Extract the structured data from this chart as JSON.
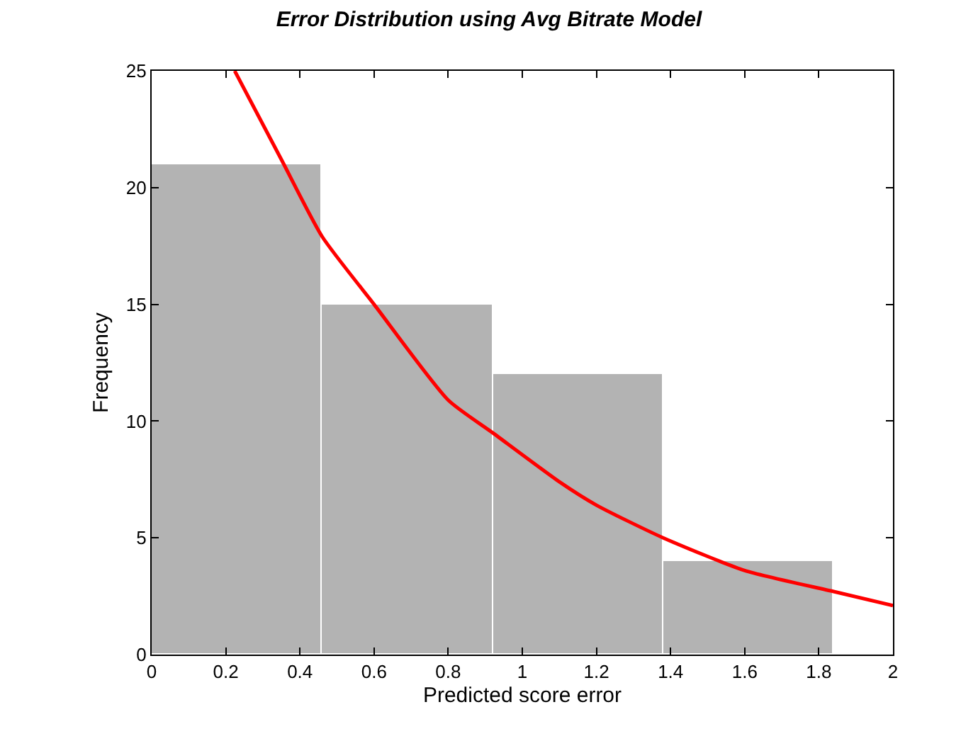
{
  "chart_data": {
    "type": "histogram",
    "title": "Error Distribution using Avg Bitrate Model",
    "xlabel": "Predicted score error",
    "ylabel": "Frequency",
    "bins": [
      0,
      0.46,
      0.92,
      1.38,
      1.84
    ],
    "values": [
      21,
      15,
      12,
      4
    ],
    "color": "#b3b3b3",
    "series": [
      {
        "type": "line",
        "color": "#ff0000",
        "x": [
          0.224,
          0.35,
          0.46,
          0.6,
          0.8,
          0.92,
          1.1,
          1.2,
          1.38,
          1.6,
          1.84,
          2.0
        ],
        "values": [
          25,
          21.2,
          17.9,
          15.0,
          10.9,
          9.5,
          7.4,
          6.4,
          5.0,
          3.6,
          2.7,
          2.1
        ]
      }
    ],
    "xlim": [
      0,
      2
    ],
    "xticks": [
      0,
      0.2,
      0.4,
      0.6,
      0.8,
      1,
      1.2,
      1.4,
      1.6,
      1.8,
      2
    ],
    "ylim": [
      0,
      25
    ],
    "yticks": [
      0,
      5,
      10,
      15,
      20,
      25
    ],
    "marker": "none",
    "line_style": "solid"
  }
}
